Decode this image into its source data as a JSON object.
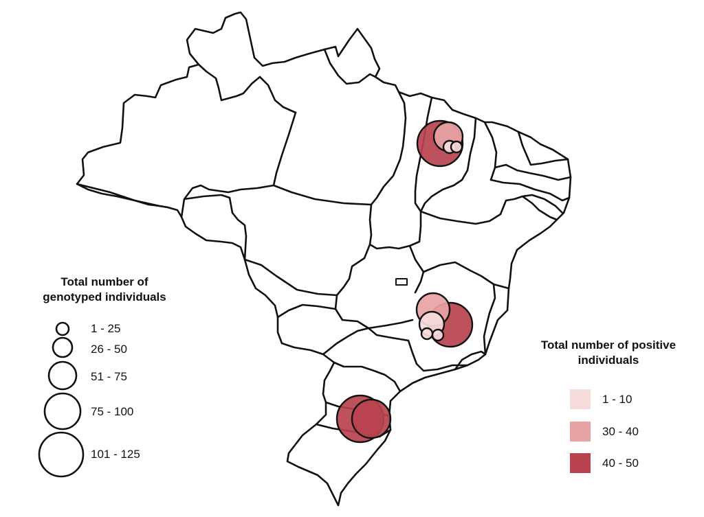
{
  "map": {
    "background_color": "#ffffff",
    "border_color": "#111111"
  },
  "legend_size": {
    "title_line1": "Total number of",
    "title_line2": "genotyped individuals",
    "items": [
      {
        "label": "1 - 25"
      },
      {
        "label": "26 - 50"
      },
      {
        "label": "51 - 75"
      },
      {
        "label": "75 - 100"
      },
      {
        "label": "101 - 125"
      }
    ]
  },
  "legend_positive": {
    "title_line1": "Total number of positive",
    "title_line2": "individuals",
    "items": [
      {
        "label": "1 - 10",
        "color": "#f7dcdc"
      },
      {
        "label": "30 - 40",
        "color": "#e8a3a5"
      },
      {
        "label": "40 - 50",
        "color": "#b8434e"
      }
    ]
  },
  "bubble_colors": {
    "light": "#f7dcdc",
    "medium": "#e8a3a5",
    "dark": "#b8434e",
    "stroke": "#111111"
  }
}
